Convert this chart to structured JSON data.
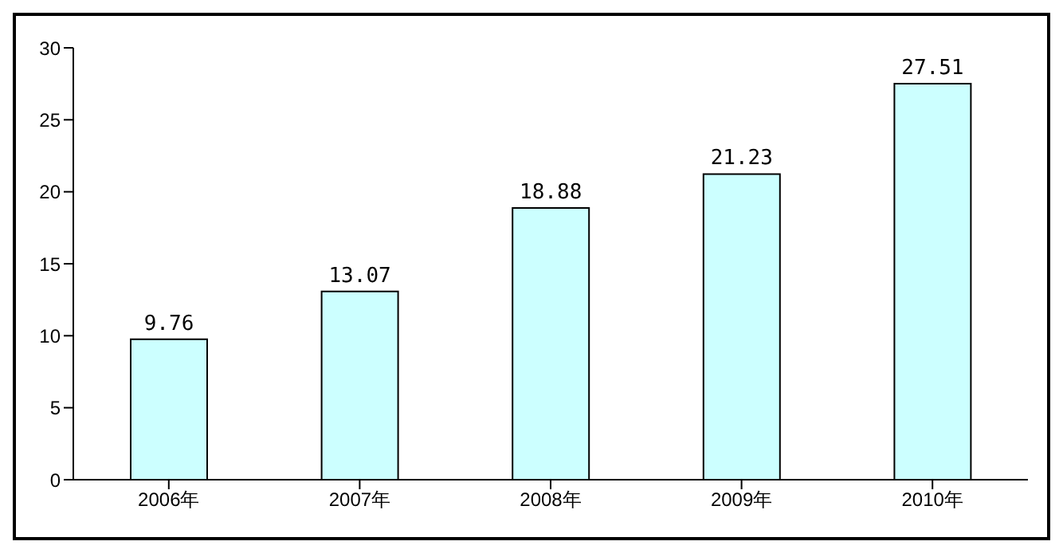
{
  "chart_data": {
    "type": "bar",
    "categories": [
      "2006年",
      "2007年",
      "2008年",
      "2009年",
      "2010年"
    ],
    "values": [
      9.76,
      13.07,
      18.88,
      21.23,
      27.51
    ],
    "color": "#ccffff",
    "ylim": [
      0,
      30
    ],
    "yticks": [
      0,
      5,
      10,
      15,
      20,
      25,
      30
    ],
    "grid": false,
    "legend": false,
    "data_labels": true
  }
}
